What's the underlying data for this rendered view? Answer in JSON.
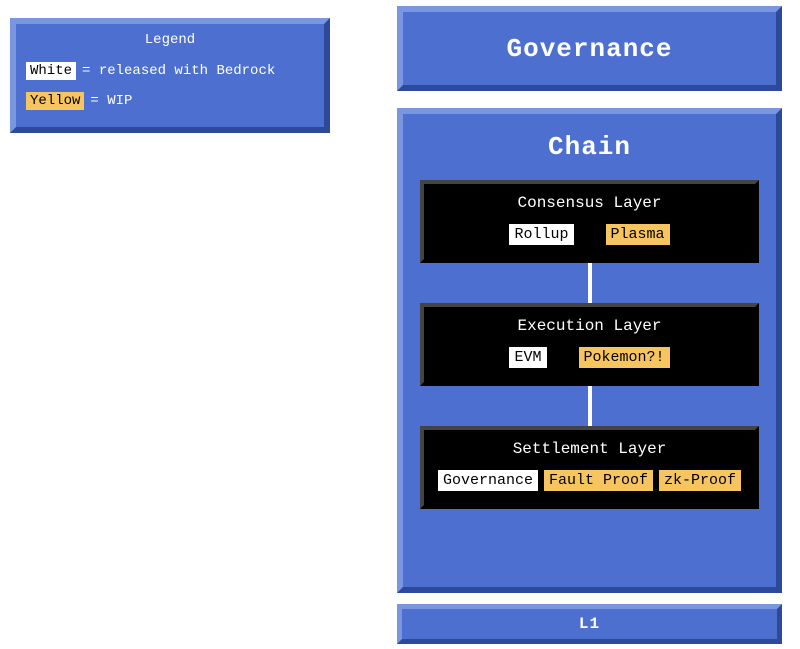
{
  "colors": {
    "panel_bg": "#4d6fd0",
    "panel_border_light": "#7a96e0",
    "panel_border_dark": "#2d4a9a",
    "layer_bg": "#000000",
    "layer_border_light": "#444444",
    "text_light": "#ffffff",
    "tag_white_bg": "#ffffff",
    "tag_yellow_bg": "#f7c55f",
    "tag_text": "#000000",
    "connector": "#ffffff",
    "page_bg": "#ffffff"
  },
  "font": {
    "family": "Courier New, monospace"
  },
  "legend": {
    "title": "Legend",
    "items": [
      {
        "tag": "White",
        "tag_class": "white",
        "desc": "= released with Bedrock"
      },
      {
        "tag": "Yellow",
        "tag_class": "yellow",
        "desc": "= WIP"
      }
    ]
  },
  "governance": {
    "title": "Governance"
  },
  "chain": {
    "title": "Chain",
    "layers": [
      {
        "title": "Consensus Layer",
        "items": [
          {
            "label": "Rollup",
            "class": "white"
          },
          {
            "label": "Plasma",
            "class": "yellow"
          }
        ],
        "spread": true
      },
      {
        "title": "Execution Layer",
        "items": [
          {
            "label": "EVM",
            "class": "white"
          },
          {
            "label": "Pokemon?!",
            "class": "yellow"
          }
        ],
        "spread": true
      },
      {
        "title": "Settlement Layer",
        "items": [
          {
            "label": "Governance",
            "class": "white"
          },
          {
            "label": "Fault Proof",
            "class": "yellow"
          },
          {
            "label": "zk-Proof",
            "class": "yellow"
          }
        ],
        "spread": false
      }
    ]
  },
  "l1": {
    "title": "L1"
  }
}
